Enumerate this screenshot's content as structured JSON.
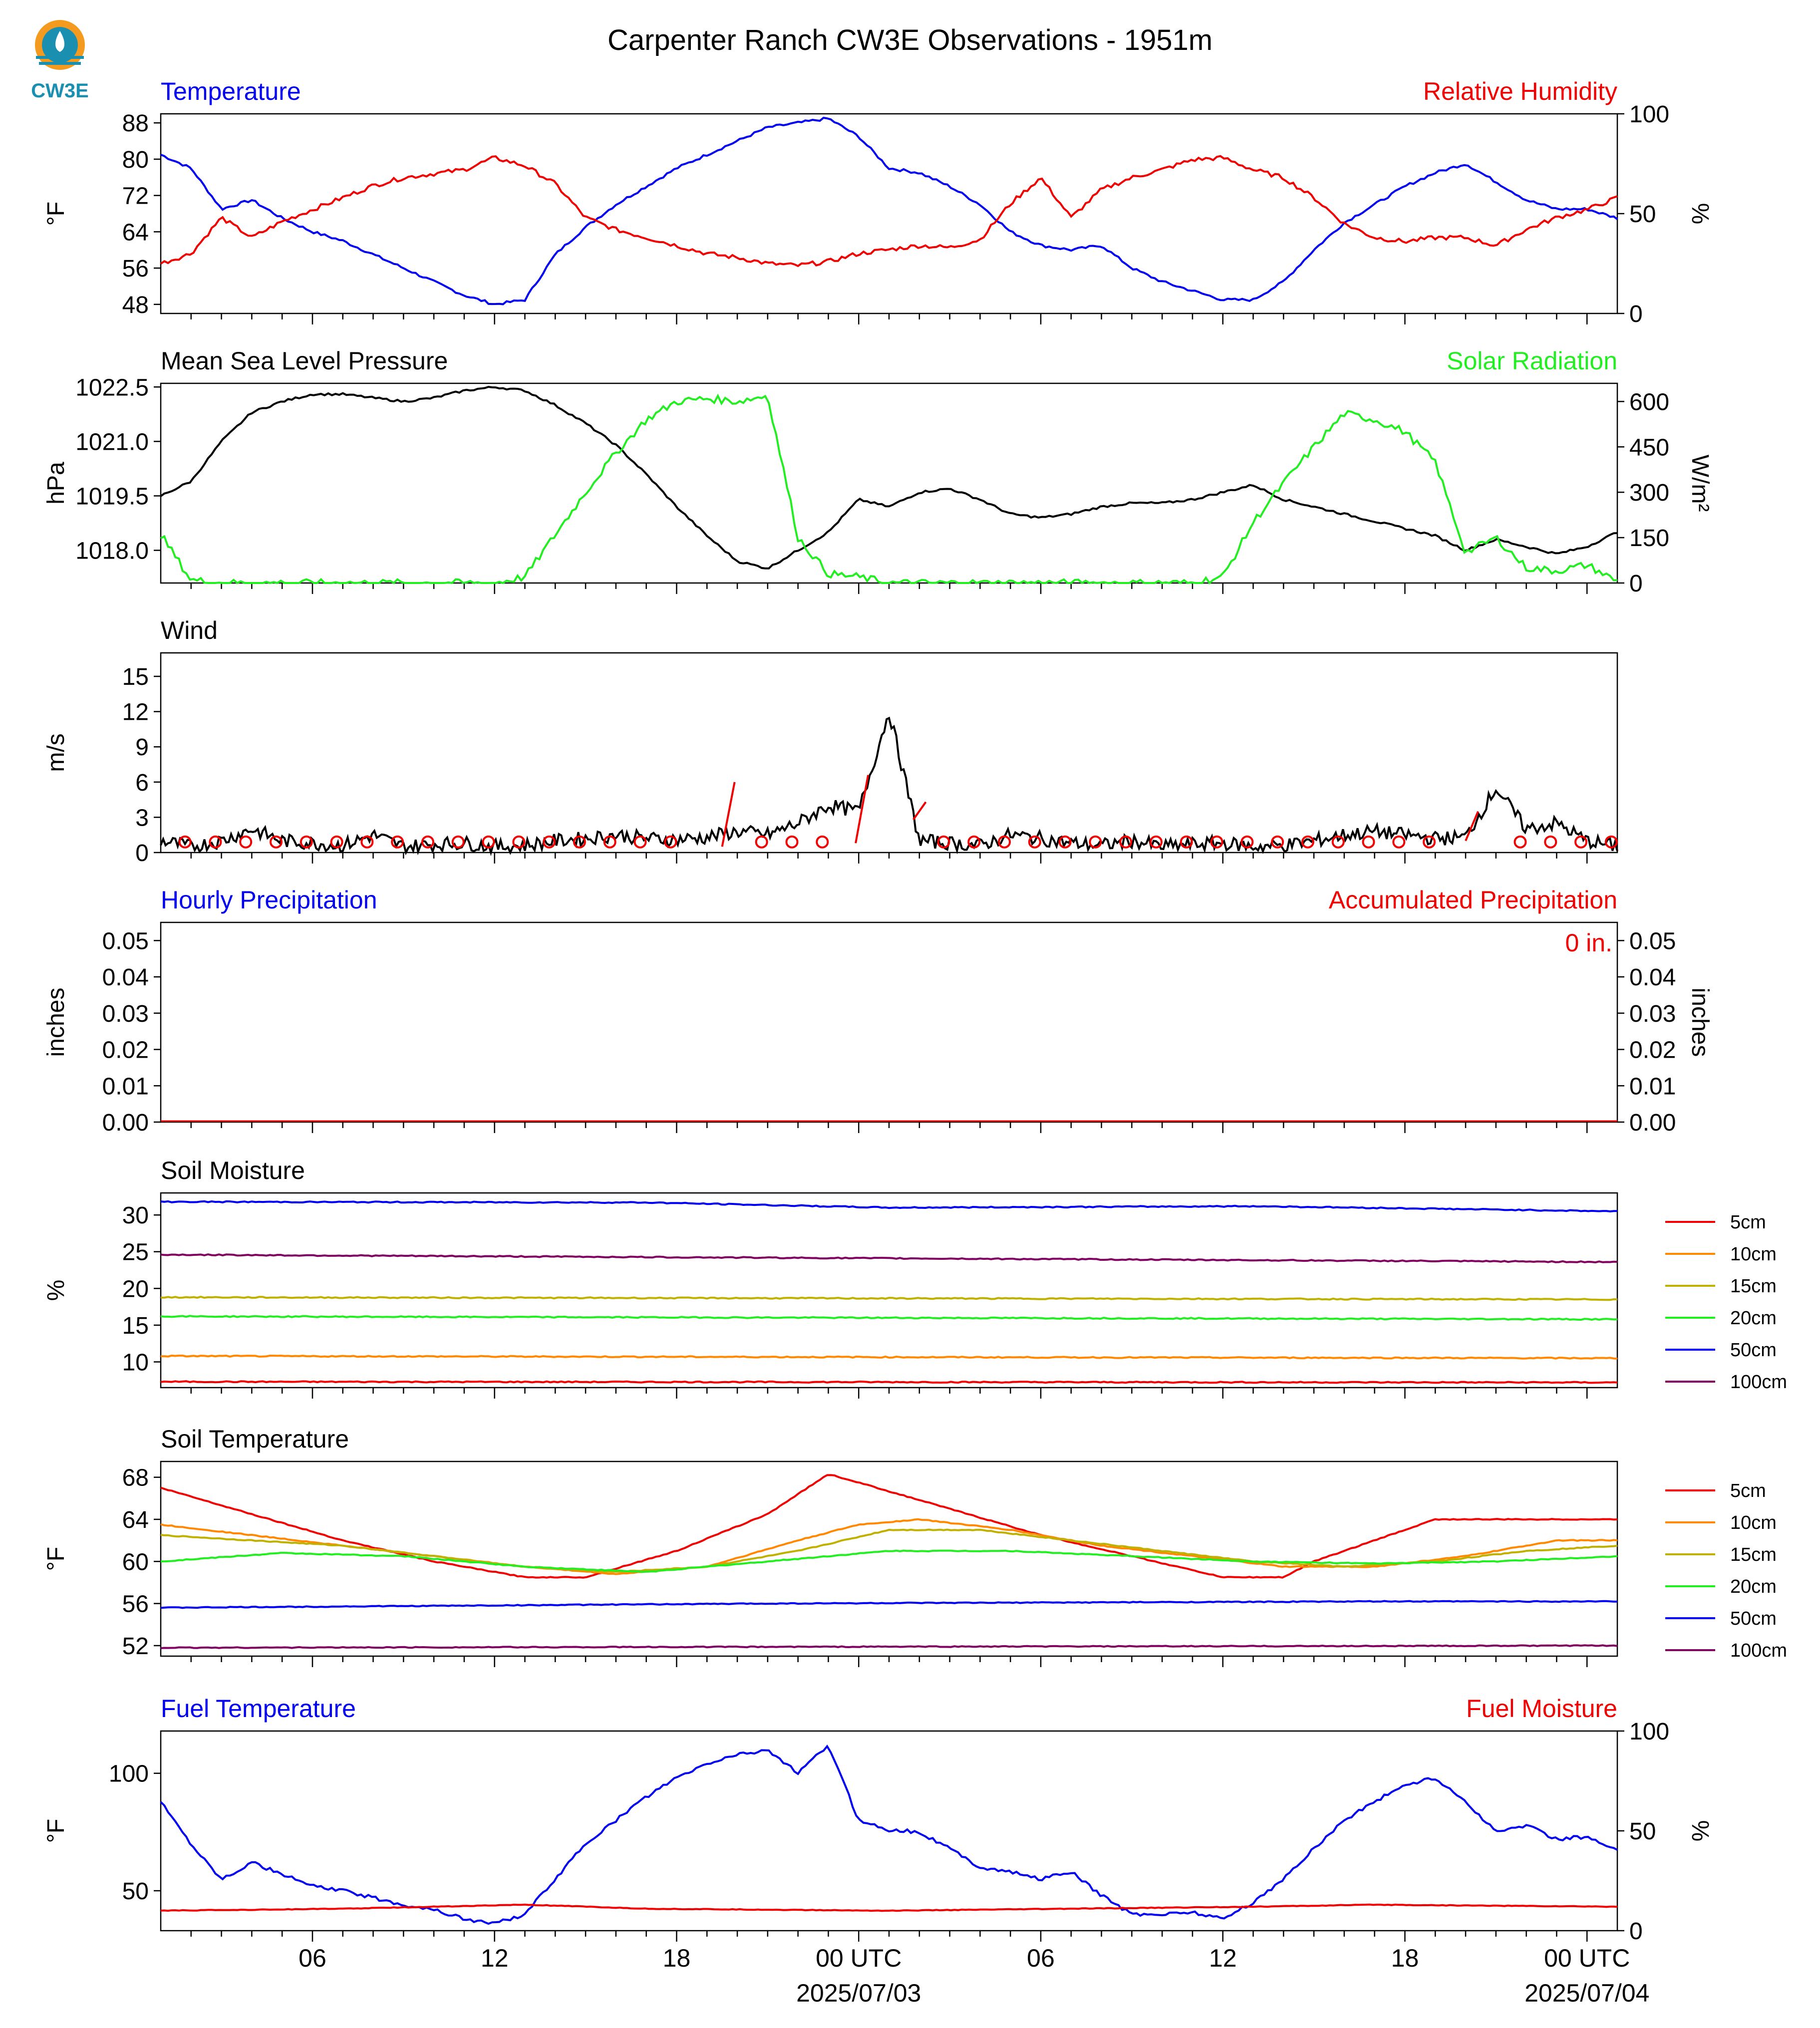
{
  "title": "Carpenter Ranch CW3E Observations - 1951m",
  "logo_text": "CW3E",
  "colors": {
    "blue": "#0000ee",
    "red": "#ee0000",
    "green": "#22ee22",
    "black": "#000000",
    "orange": "#ff8800",
    "olive": "#c0b000",
    "purple": "#800060",
    "logo": "#1a8fb0"
  },
  "x_axis": {
    "ticks": [
      "06",
      "12",
      "18",
      "00 UTC",
      "06",
      "12",
      "18",
      "00 UTC"
    ],
    "dates": [
      "2025/07/03",
      "2025/07/04"
    ]
  },
  "panels": {
    "temperature": {
      "left_title": "Temperature",
      "right_title": "Relative Humidity",
      "left_unit": "°F",
      "right_unit": "%",
      "left_ticks": [
        "88",
        "80",
        "72",
        "64",
        "56",
        "48"
      ],
      "right_ticks": [
        "100",
        "50",
        "0"
      ]
    },
    "pressure": {
      "left_title": "Mean Sea Level Pressure",
      "right_title": "Solar Radiation",
      "left_unit": "hPa",
      "right_unit": "W/m²",
      "left_ticks": [
        "1022.5",
        "1021.0",
        "1019.5",
        "1018.0"
      ],
      "right_ticks": [
        "600",
        "450",
        "300",
        "150",
        "0"
      ]
    },
    "wind": {
      "left_title": "Wind",
      "left_unit": "m/s",
      "left_ticks": [
        "15",
        "12",
        "9",
        "6",
        "3",
        "0"
      ]
    },
    "precip": {
      "left_title": "Hourly Precipitation",
      "right_title": "Accumulated Precipitation",
      "left_unit": "inches",
      "right_unit": "inches",
      "left_ticks": [
        "0.05",
        "0.04",
        "0.03",
        "0.02",
        "0.01",
        "0.00"
      ],
      "right_ticks": [
        "0.05",
        "0.04",
        "0.03",
        "0.02",
        "0.01",
        "0.00"
      ],
      "annotation": "0 in."
    },
    "soil_moisture": {
      "left_title": "Soil Moisture",
      "left_unit": "%",
      "left_ticks": [
        "30",
        "25",
        "20",
        "15",
        "10"
      ],
      "legend": [
        "5cm",
        "10cm",
        "15cm",
        "20cm",
        "50cm",
        "100cm"
      ]
    },
    "soil_temp": {
      "left_title": "Soil Temperature",
      "left_unit": "°F",
      "left_ticks": [
        "68",
        "64",
        "60",
        "56",
        "52"
      ],
      "legend": [
        "5cm",
        "10cm",
        "15cm",
        "20cm",
        "50cm",
        "100cm"
      ]
    },
    "fuel": {
      "left_title": "Fuel Temperature",
      "right_title": "Fuel Moisture",
      "left_unit": "°F",
      "right_unit": "%",
      "left_ticks": [
        "100",
        "50"
      ],
      "right_ticks": [
        "100",
        "50",
        "0"
      ]
    }
  },
  "chart_data": [
    {
      "type": "line",
      "title": "Temperature",
      "ylabel": "°F",
      "ylim": [
        46,
        90
      ],
      "x_unit": "hours since 2025/07/02 01 UTC",
      "series": [
        {
          "name": "Temperature",
          "axis": "left",
          "color": "#0000ee",
          "x": [
            0,
            1,
            2,
            3,
            4,
            5,
            6,
            7,
            8,
            9,
            10,
            11,
            12,
            13,
            14,
            15,
            16,
            17,
            18,
            19,
            20,
            21,
            22,
            23,
            24,
            25,
            26,
            27,
            28,
            29,
            30,
            31,
            32,
            33,
            34,
            35,
            36,
            37,
            38,
            39,
            40,
            41,
            42,
            43,
            44,
            45,
            46,
            47,
            48
          ],
          "y": [
            81,
            78,
            69,
            71,
            67,
            64,
            62,
            59,
            56,
            53,
            50,
            48,
            49,
            59,
            65,
            70,
            74,
            78,
            81,
            84,
            87,
            88,
            89,
            85,
            78,
            77,
            74,
            70,
            64,
            61,
            60,
            61,
            56,
            53,
            51,
            49,
            49,
            53,
            60,
            66,
            70,
            74,
            77,
            79,
            75,
            71,
            69,
            69,
            67
          ]
        },
        {
          "name": "Relative Humidity",
          "axis": "right",
          "color": "#ee0000",
          "x": [
            0,
            1,
            2,
            3,
            4,
            5,
            6,
            7,
            8,
            9,
            10,
            11,
            12,
            13,
            14,
            15,
            16,
            17,
            18,
            19,
            20,
            21,
            22,
            23,
            24,
            25,
            26,
            27,
            28,
            29,
            30,
            31,
            32,
            33,
            34,
            35,
            36,
            37,
            38,
            39,
            40,
            41,
            42,
            43,
            44,
            45,
            46,
            47,
            48
          ],
          "y": [
            25,
            30,
            48,
            38,
            46,
            52,
            58,
            64,
            68,
            70,
            72,
            78,
            74,
            65,
            48,
            42,
            38,
            34,
            30,
            28,
            25,
            24,
            26,
            30,
            32,
            34,
            33,
            37,
            55,
            68,
            48,
            62,
            68,
            72,
            77,
            78,
            72,
            68,
            58,
            45,
            38,
            36,
            38,
            38,
            34,
            42,
            48,
            52,
            58
          ]
        }
      ]
    },
    {
      "type": "line",
      "title": "Mean Sea Level Pressure",
      "ylabel": "hPa",
      "ylim": [
        1017.1,
        1022.6
      ],
      "x_unit": "hours since 2025/07/02 01 UTC",
      "series": [
        {
          "name": "Mean Sea Level Pressure",
          "axis": "left",
          "color": "#000000",
          "x": [
            0,
            1,
            2,
            3,
            4,
            5,
            6,
            7,
            8,
            9,
            10,
            11,
            12,
            13,
            14,
            15,
            16,
            17,
            18,
            19,
            20,
            21,
            22,
            23,
            24,
            25,
            26,
            27,
            28,
            29,
            30,
            31,
            32,
            33,
            34,
            35,
            36,
            37,
            38,
            39,
            40,
            41,
            42,
            43,
            44,
            45,
            46,
            47,
            48
          ],
          "y": [
            1019.5,
            1019.9,
            1021.0,
            1021.8,
            1022.1,
            1022.3,
            1022.3,
            1022.2,
            1022.1,
            1022.2,
            1022.4,
            1022.5,
            1022.4,
            1022.0,
            1021.5,
            1020.9,
            1020.1,
            1019.2,
            1018.4,
            1017.7,
            1017.5,
            1018.0,
            1018.5,
            1019.4,
            1019.2,
            1019.6,
            1019.7,
            1019.4,
            1019.0,
            1018.9,
            1019.0,
            1019.2,
            1019.3,
            1019.3,
            1019.4,
            1019.6,
            1019.8,
            1019.4,
            1019.2,
            1019.0,
            1018.8,
            1018.6,
            1018.4,
            1018.0,
            1018.3,
            1018.1,
            1017.9,
            1018.1,
            1018.5
          ]
        },
        {
          "name": "Solar Radiation",
          "axis": "right",
          "color": "#22ee22",
          "x": [
            0,
            1,
            2,
            3,
            4,
            5,
            6,
            7,
            8,
            9,
            10,
            11,
            12,
            13,
            14,
            15,
            16,
            17,
            18,
            19,
            20,
            21,
            22,
            23,
            24,
            25,
            26,
            27,
            28,
            29,
            30,
            31,
            32,
            33,
            34,
            35,
            36,
            37,
            38,
            39,
            40,
            41,
            42,
            43,
            44,
            45,
            46,
            47,
            48
          ],
          "y": [
            160,
            10,
            0,
            0,
            0,
            0,
            0,
            0,
            0,
            0,
            0,
            0,
            20,
            160,
            300,
            430,
            540,
            600,
            610,
            600,
            620,
            150,
            30,
            20,
            0,
            0,
            0,
            0,
            0,
            0,
            0,
            0,
            0,
            0,
            0,
            20,
            200,
            330,
            450,
            560,
            540,
            500,
            400,
            100,
            150,
            50,
            40,
            60,
            5
          ]
        }
      ]
    },
    {
      "type": "line",
      "title": "Wind",
      "ylabel": "m/s",
      "ylim": [
        0,
        17
      ],
      "x_unit": "hours since 2025/07/02 01 UTC",
      "series": [
        {
          "name": "Wind",
          "color": "#000000",
          "x": [
            0,
            1,
            2,
            3,
            4,
            5,
            6,
            7,
            8,
            9,
            10,
            11,
            12,
            13,
            14,
            15,
            16,
            17,
            18,
            19,
            20,
            21,
            22,
            23,
            24,
            25,
            26,
            27,
            28,
            29,
            30,
            31,
            32,
            33,
            34,
            35,
            36,
            37,
            38,
            39,
            40,
            41,
            42,
            43,
            44,
            45,
            46,
            47,
            48
          ],
          "y": [
            1,
            0.5,
            1,
            2,
            1,
            0.8,
            0.6,
            1.5,
            0.5,
            0.7,
            0.8,
            0.5,
            0.6,
            1,
            1.2,
            1.5,
            1.2,
            1.1,
            1.3,
            1.8,
            1.5,
            2.5,
            4,
            3.5,
            12,
            1,
            0.8,
            0.6,
            1.5,
            1.2,
            0.8,
            0.6,
            1,
            0.5,
            0.7,
            0.8,
            0.5,
            0.6,
            1,
            1.5,
            1.8,
            1.5,
            1.2,
            1.3,
            5.5,
            2,
            2.5,
            1,
            0.5
          ]
        }
      ]
    },
    {
      "type": "line",
      "title": "Hourly Precipitation",
      "ylabel": "inches",
      "ylim": [
        0,
        0.055
      ],
      "series": [
        {
          "name": "Accumulated Precipitation",
          "values": [
            0
          ]
        }
      ]
    },
    {
      "type": "line",
      "title": "Soil Moisture",
      "ylabel": "%",
      "ylim": [
        6.5,
        33
      ],
      "series": [
        {
          "name": "5cm",
          "color": "#ee0000",
          "x": [
            0,
            48
          ],
          "y": [
            7.3,
            7.2
          ]
        },
        {
          "name": "10cm",
          "color": "#ff8800",
          "x": [
            0,
            48
          ],
          "y": [
            10.8,
            10.5
          ]
        },
        {
          "name": "15cm",
          "color": "#c0b000",
          "x": [
            0,
            48
          ],
          "y": [
            18.8,
            18.5
          ]
        },
        {
          "name": "20cm",
          "color": "#22ee22",
          "x": [
            0,
            48
          ],
          "y": [
            16.2,
            15.8
          ]
        },
        {
          "name": "50cm",
          "color": "#0000ee",
          "x": [
            0,
            16,
            24,
            36,
            48
          ],
          "y": [
            31.8,
            31.7,
            31.0,
            31.2,
            30.5
          ]
        },
        {
          "name": "100cm",
          "color": "#800060",
          "x": [
            0,
            48
          ],
          "y": [
            24.6,
            23.6
          ]
        }
      ]
    },
    {
      "type": "line",
      "title": "Soil Temperature",
      "ylabel": "°F",
      "ylim": [
        51,
        69.5
      ],
      "series": [
        {
          "name": "5cm",
          "color": "#ee0000",
          "x": [
            0,
            3,
            6,
            9,
            12,
            14,
            17,
            20,
            22,
            23,
            26,
            29,
            32,
            35,
            37,
            38,
            40,
            42,
            44,
            46,
            48
          ],
          "y": [
            67,
            64.5,
            62,
            60,
            58.5,
            58.5,
            61,
            64.5,
            68.3,
            67.5,
            65,
            62.5,
            60.5,
            58.5,
            58.5,
            60,
            62,
            64,
            64,
            64,
            64
          ]
        },
        {
          "name": "10cm",
          "color": "#ff8800",
          "x": [
            0,
            3,
            6,
            9,
            12,
            15,
            18,
            21,
            23,
            25,
            28,
            31,
            34,
            37,
            40,
            43,
            46,
            48
          ],
          "y": [
            63.5,
            62.5,
            61.5,
            60.5,
            59.5,
            58.8,
            59.5,
            62,
            63.5,
            64,
            63,
            61.5,
            60.5,
            59.5,
            59.5,
            60.5,
            62,
            62
          ]
        },
        {
          "name": "15cm",
          "color": "#c0b000",
          "x": [
            0,
            3,
            6,
            9,
            12,
            15,
            18,
            21,
            24,
            27,
            30,
            33,
            36,
            39,
            42,
            45,
            48
          ],
          "y": [
            62.5,
            62,
            61.5,
            60.5,
            59.5,
            59,
            59.5,
            61,
            63,
            63,
            62,
            61,
            60,
            59.5,
            60,
            61,
            61.5
          ]
        },
        {
          "name": "20cm",
          "color": "#22ee22",
          "x": [
            0,
            4,
            8,
            12,
            16,
            20,
            24,
            28,
            32,
            36,
            40,
            44,
            48
          ],
          "y": [
            60,
            60.8,
            60.5,
            59.5,
            59,
            60,
            61,
            61,
            60.5,
            60,
            59.8,
            60,
            60.5
          ]
        },
        {
          "name": "50cm",
          "color": "#0000ee",
          "x": [
            0,
            10,
            20,
            30,
            40,
            48
          ],
          "y": [
            55.6,
            55.8,
            56,
            56.1,
            56.2,
            56.2
          ]
        },
        {
          "name": "100cm",
          "color": "#800060",
          "x": [
            0,
            48
          ],
          "y": [
            51.8,
            52
          ]
        }
      ]
    },
    {
      "type": "line",
      "title": "Fuel Temperature",
      "ylabel": "°F",
      "ylim": [
        33,
        118
      ],
      "x_unit": "hours since 2025/07/02 01 UTC",
      "series": [
        {
          "name": "Fuel Temperature",
          "axis": "left",
          "color": "#0000ee",
          "x": [
            0,
            1,
            2,
            3,
            4,
            5,
            6,
            7,
            8,
            9,
            10,
            11,
            12,
            13,
            14,
            15,
            16,
            17,
            18,
            19,
            20,
            21,
            22,
            23,
            24,
            25,
            26,
            27,
            28,
            29,
            30,
            31,
            32,
            33,
            34,
            35,
            36,
            37,
            38,
            39,
            40,
            41,
            42,
            43,
            44,
            45,
            46,
            47,
            48
          ],
          "y": [
            88,
            70,
            55,
            62,
            57,
            52,
            50,
            47,
            44,
            42,
            38,
            36,
            40,
            55,
            70,
            80,
            90,
            98,
            104,
            108,
            110,
            100,
            112,
            80,
            76,
            75,
            68,
            60,
            58,
            55,
            58,
            48,
            40,
            40,
            41,
            38,
            45,
            55,
            68,
            80,
            88,
            95,
            98,
            88,
            75,
            78,
            72,
            73,
            67
          ]
        },
        {
          "name": "Fuel Moisture",
          "axis": "right",
          "color": "#ee0000",
          "x": [
            0,
            6,
            12,
            16,
            24,
            30,
            36,
            40,
            48
          ],
          "y": [
            10,
            11,
            13,
            11,
            10,
            11,
            12,
            13,
            12
          ]
        }
      ]
    }
  ]
}
